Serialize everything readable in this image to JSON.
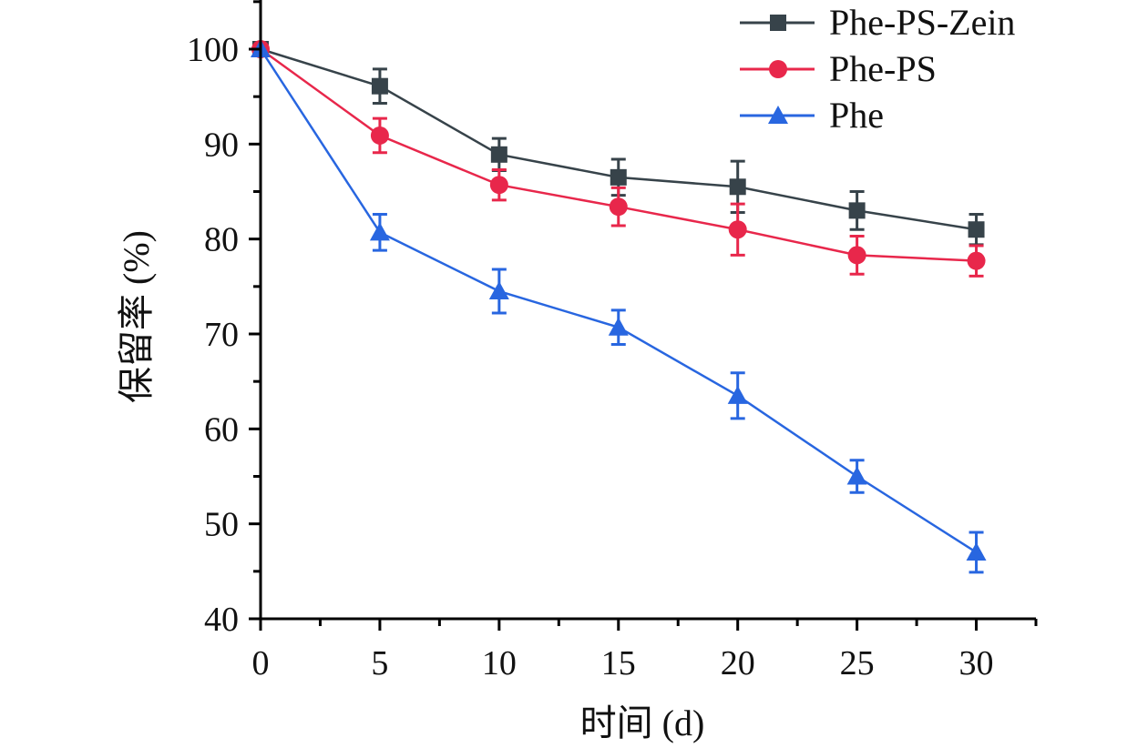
{
  "chart_data": {
    "type": "line",
    "title": "",
    "xlabel": "时间 (d)",
    "ylabel": "保留率 (%)",
    "xlim": [
      0,
      32.5
    ],
    "ylim": [
      40,
      105
    ],
    "x_ticks": [
      0,
      5,
      10,
      15,
      20,
      25,
      30
    ],
    "x_tick_labels": [
      "0",
      "5",
      "10",
      "15",
      "20",
      "25",
      "30"
    ],
    "y_ticks": [
      40,
      50,
      60,
      70,
      80,
      90,
      100
    ],
    "y_tick_labels": [
      "40",
      "50",
      "60",
      "70",
      "80",
      "90",
      "100"
    ],
    "x_minor_step": 2.5,
    "y_minor_step": 5,
    "grid": false,
    "legend_position": "top-right",
    "x": [
      0,
      5,
      10,
      15,
      20,
      25,
      30
    ],
    "series": [
      {
        "name": "Phe-PS-Zein",
        "color": "#37434a",
        "marker": "square",
        "values": [
          100,
          96.1,
          88.9,
          86.5,
          85.5,
          83.0,
          81.0
        ],
        "errors": [
          0,
          1.8,
          1.7,
          1.9,
          2.7,
          2.0,
          1.6
        ]
      },
      {
        "name": "Phe-PS",
        "color": "#e8274b",
        "marker": "circle",
        "values": [
          100,
          90.9,
          85.7,
          83.4,
          81.0,
          78.3,
          77.7
        ],
        "errors": [
          0,
          1.8,
          1.6,
          2.0,
          2.7,
          2.0,
          1.6
        ]
      },
      {
        "name": "Phe",
        "color": "#2866e0",
        "marker": "triangle",
        "values": [
          100,
          80.7,
          74.5,
          70.7,
          63.5,
          55.0,
          47.0
        ],
        "errors": [
          0,
          1.9,
          2.3,
          1.8,
          2.4,
          1.7,
          2.1
        ]
      }
    ]
  }
}
